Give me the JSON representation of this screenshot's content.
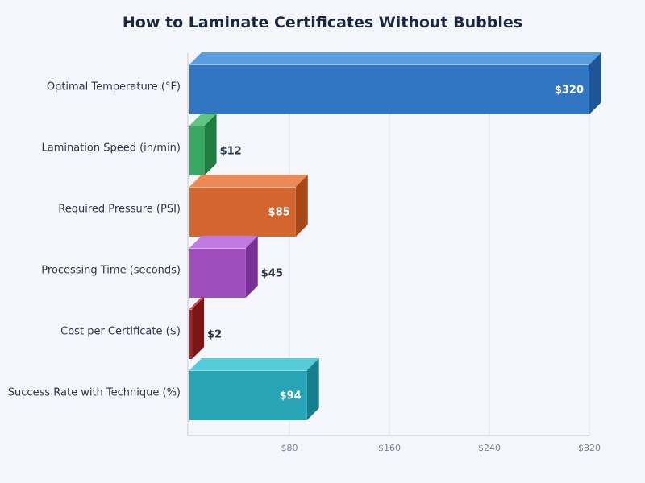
{
  "chart_data": {
    "type": "bar",
    "orientation": "horizontal",
    "style": "3d",
    "title": "How to Laminate Certificates Without Bubbles",
    "xlabel": "",
    "ylabel": "",
    "xlim": [
      0,
      320
    ],
    "grid": true,
    "legend": "none",
    "value_prefix": "$",
    "ticks": [
      {
        "value": 80,
        "label": "$80"
      },
      {
        "value": 160,
        "label": "$160"
      },
      {
        "value": 240,
        "label": "$240"
      },
      {
        "value": 320,
        "label": "$320"
      }
    ],
    "categories": [
      "Optimal Temperature (°F)",
      "Lamination Speed (in/min)",
      "Required Pressure (PSI)",
      "Processing Time (seconds)",
      "Cost per Certificate ($)",
      "Success Rate with Technique (%)"
    ],
    "values": [
      320,
      12,
      85,
      45,
      2,
      94
    ],
    "value_labels": [
      "$320",
      "$12",
      "$85",
      "$45",
      "$2",
      "$94"
    ],
    "colors": [
      {
        "front": "#3176c3",
        "top": "#5b9ee0",
        "side": "#1f5596"
      },
      {
        "front": "#38a862",
        "top": "#5fc583",
        "side": "#1f7d42"
      },
      {
        "front": "#d5652e",
        "top": "#ec8a55",
        "side": "#a84716"
      },
      {
        "front": "#9f4ebf",
        "top": "#c07ae0",
        "side": "#7a2f99"
      },
      {
        "front": "#a82226",
        "top": "#d0454a",
        "side": "#7d1418"
      },
      {
        "front": "#27a5b6",
        "top": "#55ccd9",
        "side": "#167f8d"
      }
    ]
  }
}
